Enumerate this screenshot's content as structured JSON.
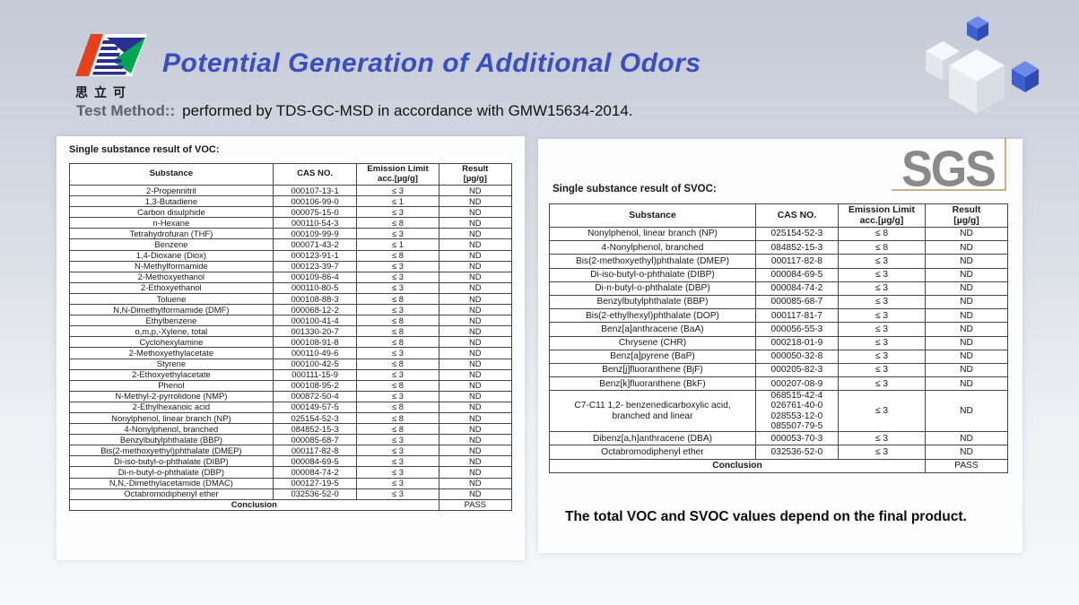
{
  "slide": {
    "title": "Potential Generation of Additional Odors",
    "brand_name_cn": "思立可",
    "test_method_label": "Test Method::",
    "test_method_text": "performed by TDS-GC-MSD in accordance with GMW15634-2014.",
    "sgs_logo_text": "SGS",
    "footer_note": "The total VOC and SVOC values depend on the final product."
  },
  "colors": {
    "title_blue": "#3a4ec2",
    "test_label_gray": "#5a6270",
    "logo_red": "#e8401c",
    "logo_navy": "#282f8e",
    "logo_green": "#00a651",
    "sgs_gray": "#8a8a8a",
    "sgs_line_tan": "#c9b08c",
    "cube_blue": "#3f66d4",
    "cube_white": "#f3f4f8"
  },
  "voc_table": {
    "section_title": "Single substance result of VOC:",
    "headers": [
      "Substance",
      "CAS NO.",
      "Emission Limit\nacc.[µg/g]",
      "Result\n[µg/g]"
    ],
    "rows": [
      {
        "substance": "2-Propennitril",
        "cas": "000107-13-1",
        "limit": "≤ 3",
        "result": "ND"
      },
      {
        "substance": "1,3-Butadiene",
        "cas": "000106-99-0",
        "limit": "≤ 1",
        "result": "ND"
      },
      {
        "substance": "Carbon disulphide",
        "cas": "000075-15-0",
        "limit": "≤ 3",
        "result": "ND"
      },
      {
        "substance": "n-Hexane",
        "cas": "000110-54-3",
        "limit": "≤ 8",
        "result": "ND"
      },
      {
        "substance": "Tetrahydrofuran (THF)",
        "cas": "000109-99-9",
        "limit": "≤ 3",
        "result": "ND"
      },
      {
        "substance": "Benzene",
        "cas": "000071-43-2",
        "limit": "≤ 1",
        "result": "ND"
      },
      {
        "substance": "1,4-Dioxane (Diox)",
        "cas": "000123-91-1",
        "limit": "≤ 8",
        "result": "ND"
      },
      {
        "substance": "N-Methylformamide",
        "cas": "000123-39-7",
        "limit": "≤ 3",
        "result": "ND"
      },
      {
        "substance": "2-Methoxyethanol",
        "cas": "000109-86-4",
        "limit": "≤ 3",
        "result": "ND"
      },
      {
        "substance": "2-Ethoxyethanol",
        "cas": "000110-80-5",
        "limit": "≤ 3",
        "result": "ND"
      },
      {
        "substance": "Toluene",
        "cas": "000108-88-3",
        "limit": "≤ 8",
        "result": "ND"
      },
      {
        "substance": "N,N-Dimethylformamide (DMF)",
        "cas": "000068-12-2",
        "limit": "≤ 3",
        "result": "ND"
      },
      {
        "substance": "Ethylbenzene",
        "cas": "000100-41-4",
        "limit": "≤ 8",
        "result": "ND"
      },
      {
        "substance": "o,m,p,-Xylene, total",
        "cas": "001330-20-7",
        "limit": "≤ 8",
        "result": "ND"
      },
      {
        "substance": "Cyclohexylamine",
        "cas": "000108-91-8",
        "limit": "≤ 8",
        "result": "ND"
      },
      {
        "substance": "2-Methoxyethylacetate",
        "cas": "000110-49-6",
        "limit": "≤ 3",
        "result": "ND"
      },
      {
        "substance": "Styrene",
        "cas": "000100-42-5",
        "limit": "≤ 8",
        "result": "ND"
      },
      {
        "substance": "2-Ethoxyethylacetate",
        "cas": "000111-15-9",
        "limit": "≤ 3",
        "result": "ND"
      },
      {
        "substance": "Phenol",
        "cas": "000108-95-2",
        "limit": "≤ 8",
        "result": "ND"
      },
      {
        "substance": "N-Methyl-2-pyrrolidone (NMP)",
        "cas": "000872-50-4",
        "limit": "≤ 3",
        "result": "ND"
      },
      {
        "substance": "2-Ethylhexanoic acid",
        "cas": "000149-57-5",
        "limit": "≤ 8",
        "result": "ND"
      },
      {
        "substance": "Nonylphenol, linear branch (NP)",
        "cas": "025154-52-3",
        "limit": "≤ 8",
        "result": "ND"
      },
      {
        "substance": "4-Nonylphenol, branched",
        "cas": "084852-15-3",
        "limit": "≤ 8",
        "result": "ND"
      },
      {
        "substance": "Benzylbutylphthalate (BBP)",
        "cas": "000085-68-7",
        "limit": "≤ 3",
        "result": "ND"
      },
      {
        "substance": "Bis(2-methoxyethyl)phthalate (DMEP)",
        "cas": "000117-82-8",
        "limit": "≤ 3",
        "result": "ND"
      },
      {
        "substance": "Di-iso-butyl-o-phthalate (DIBP)",
        "cas": "000084-69-5",
        "limit": "≤ 3",
        "result": "ND"
      },
      {
        "substance": "Di-n-butyl-o-phthalate (DBP)",
        "cas": "000084-74-2",
        "limit": "≤ 3",
        "result": "ND"
      },
      {
        "substance": "N,N,-Dimethylacetamide (DMAC)",
        "cas": "000127-19-5",
        "limit": "≤ 3",
        "result": "ND"
      },
      {
        "substance": "Octabromodiphenyl ether",
        "cas": "032536-52-0",
        "limit": "≤ 3",
        "result": "ND"
      }
    ],
    "conclusion_label": "Conclusion",
    "conclusion_value": "PASS"
  },
  "svoc_table": {
    "section_title": "Single substance result of SVOC:",
    "headers": [
      "Substance",
      "CAS NO.",
      "Emission Limit\nacc.[µg/g]",
      "Result\n[µg/g]"
    ],
    "rows": [
      {
        "substance": "Nonylphenol, linear branch (NP)",
        "cas": "025154-52-3",
        "limit": "≤ 8",
        "result": "ND"
      },
      {
        "substance": "4-Nonylphenol, branched",
        "cas": "084852-15-3",
        "limit": "≤ 8",
        "result": "ND"
      },
      {
        "substance": "Bis(2-methoxyethyl)phthalate (DMEP)",
        "cas": "000117-82-8",
        "limit": "≤ 3",
        "result": "ND"
      },
      {
        "substance": "Di-iso-butyl-o-phthalate (DIBP)",
        "cas": "000084-69-5",
        "limit": "≤ 3",
        "result": "ND"
      },
      {
        "substance": "Di-n-butyl-o-phthalate (DBP)",
        "cas": "000084-74-2",
        "limit": "≤ 3",
        "result": "ND"
      },
      {
        "substance": "Benzylbutylphthalate (BBP)",
        "cas": "000085-68-7",
        "limit": "≤ 3",
        "result": "ND"
      },
      {
        "substance": "Bis(2-ethylhexyl)phthalate (DOP)",
        "cas": "000117-81-7",
        "limit": "≤ 3",
        "result": "ND"
      },
      {
        "substance": "Benz[a]anthracene (BaA)",
        "cas": "000056-55-3",
        "limit": "≤ 3",
        "result": "ND"
      },
      {
        "substance": "Chrysene (CHR)",
        "cas": "000218-01-9",
        "limit": "≤ 3",
        "result": "ND"
      },
      {
        "substance": "Benz[a]pyrene (BaP)",
        "cas": "000050-32-8",
        "limit": "≤ 3",
        "result": "ND"
      },
      {
        "substance": "Benz[j]fluoranthene (BjF)",
        "cas": "000205-82-3",
        "limit": "≤ 3",
        "result": "ND"
      },
      {
        "substance": "Benz[k]fluoranthene (BkF)",
        "cas": "000207-08-9",
        "limit": "≤ 3",
        "result": "ND"
      },
      {
        "substance": "C7-C11 1,2- benzenedicarboxylic acid,\nbranched and linear",
        "cas": "068515-42-4\n026761-40-0\n028553-12-0\n085507-79-5",
        "limit": "≤ 3",
        "result": "ND"
      },
      {
        "substance": "Dibenz[a,h]anthracene (DBA)",
        "cas": "000053-70-3",
        "limit": "≤ 3",
        "result": "ND"
      },
      {
        "substance": "Octabromodiphenyl ether",
        "cas": "032536-52-0",
        "limit": "≤ 3",
        "result": "ND"
      }
    ],
    "conclusion_label": "Conclusion",
    "conclusion_value": "PASS"
  }
}
